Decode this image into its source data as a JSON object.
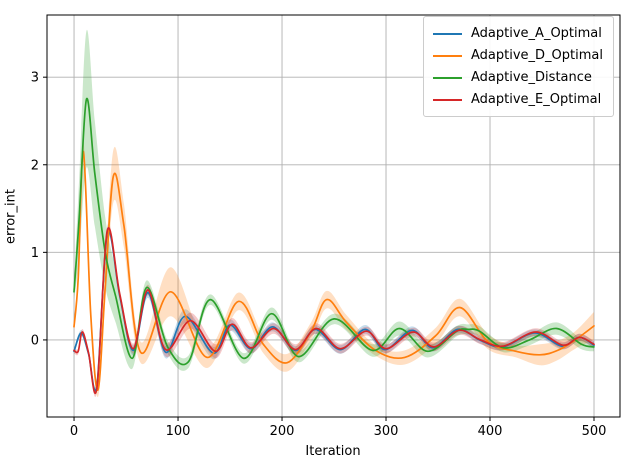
{
  "figure": {
    "background": "#ffffff"
  },
  "chart_data": {
    "type": "line",
    "title": "",
    "xlabel": "Iteration",
    "ylabel": "error_int",
    "xlim": [
      -26,
      525
    ],
    "ylim": [
      -0.88,
      3.71
    ],
    "xticks": [
      0,
      100,
      200,
      300,
      400,
      500
    ],
    "yticks": [
      0,
      1,
      2,
      3
    ],
    "grid": true,
    "grid_color": "#b0b0b0",
    "spine_color": "#000000",
    "legend_position": "upper right",
    "band_alpha": 0.25,
    "series": [
      {
        "name": "Adaptive_A_Optimal",
        "color": "#1f77b4",
        "points": [
          [
            0,
            -0.13
          ],
          [
            7,
            0.08
          ],
          [
            14,
            -0.16
          ],
          [
            22,
            -0.52
          ],
          [
            32,
            1.22
          ],
          [
            44,
            0.5
          ],
          [
            57,
            -0.12
          ],
          [
            71,
            0.54
          ],
          [
            88,
            -0.14
          ],
          [
            107,
            0.27
          ],
          [
            134,
            -0.15
          ],
          [
            150,
            0.17
          ],
          [
            170,
            -0.1
          ],
          [
            191,
            0.15
          ],
          [
            213,
            -0.12
          ],
          [
            232,
            0.12
          ],
          [
            256,
            -0.11
          ],
          [
            280,
            0.12
          ],
          [
            299,
            -0.11
          ],
          [
            325,
            0.11
          ],
          [
            345,
            -0.09
          ],
          [
            369,
            0.12
          ],
          [
            390,
            0.0
          ],
          [
            412,
            -0.08
          ],
          [
            443,
            0.08
          ],
          [
            469,
            -0.07
          ],
          [
            486,
            0.03
          ],
          [
            500,
            -0.06
          ]
        ],
        "band": [
          [
            0,
            0.03
          ],
          [
            32,
            0.05
          ],
          [
            71,
            0.06
          ],
          [
            88,
            0.07
          ],
          [
            107,
            0.08
          ],
          [
            134,
            0.07
          ],
          [
            191,
            0.05
          ],
          [
            280,
            0.05
          ],
          [
            369,
            0.04
          ],
          [
            500,
            0.04
          ]
        ]
      },
      {
        "name": "Adaptive_D_Optimal",
        "color": "#ff7f0e",
        "points": [
          [
            0,
            0.15
          ],
          [
            4,
            0.7
          ],
          [
            9,
            2.15
          ],
          [
            16,
            0.3
          ],
          [
            23,
            -0.57
          ],
          [
            30,
            0.6
          ],
          [
            38,
            1.88
          ],
          [
            48,
            1.3
          ],
          [
            64,
            -0.14
          ],
          [
            93,
            0.55
          ],
          [
            128,
            -0.2
          ],
          [
            158,
            0.44
          ],
          [
            182,
            -0.05
          ],
          [
            205,
            -0.26
          ],
          [
            228,
            0.1
          ],
          [
            243,
            0.46
          ],
          [
            262,
            0.2
          ],
          [
            290,
            -0.12
          ],
          [
            318,
            -0.2
          ],
          [
            348,
            0.05
          ],
          [
            371,
            0.37
          ],
          [
            398,
            -0.02
          ],
          [
            425,
            -0.13
          ],
          [
            448,
            -0.17
          ],
          [
            465,
            -0.12
          ],
          [
            482,
            0.0
          ],
          [
            500,
            0.16
          ]
        ],
        "band": [
          [
            0,
            0.05
          ],
          [
            9,
            0.12
          ],
          [
            23,
            0.08
          ],
          [
            38,
            0.3
          ],
          [
            48,
            0.25
          ],
          [
            64,
            0.12
          ],
          [
            80,
            0.22
          ],
          [
            93,
            0.28
          ],
          [
            105,
            0.25
          ],
          [
            128,
            0.12
          ],
          [
            158,
            0.1
          ],
          [
            205,
            0.1
          ],
          [
            243,
            0.1
          ],
          [
            290,
            0.06
          ],
          [
            318,
            0.08
          ],
          [
            371,
            0.1
          ],
          [
            425,
            0.07
          ],
          [
            448,
            0.12
          ],
          [
            482,
            0.1
          ],
          [
            500,
            0.16
          ]
        ]
      },
      {
        "name": "Adaptive_Distance",
        "color": "#2ca02c",
        "points": [
          [
            0,
            0.55
          ],
          [
            5,
            1.4
          ],
          [
            12,
            2.75
          ],
          [
            20,
            1.9
          ],
          [
            30,
            1.0
          ],
          [
            40,
            0.5
          ],
          [
            56,
            -0.21
          ],
          [
            70,
            0.6
          ],
          [
            90,
            -0.08
          ],
          [
            110,
            -0.25
          ],
          [
            131,
            0.46
          ],
          [
            163,
            -0.21
          ],
          [
            190,
            0.3
          ],
          [
            216,
            -0.19
          ],
          [
            250,
            0.24
          ],
          [
            287,
            -0.12
          ],
          [
            313,
            0.13
          ],
          [
            340,
            -0.13
          ],
          [
            368,
            0.1
          ],
          [
            379,
            0.12
          ],
          [
            390,
            0.1
          ],
          [
            413,
            -0.09
          ],
          [
            438,
            0.0
          ],
          [
            464,
            0.13
          ],
          [
            488,
            -0.05
          ],
          [
            500,
            -0.08
          ]
        ],
        "band": [
          [
            0,
            0.1
          ],
          [
            5,
            0.45
          ],
          [
            12,
            0.78
          ],
          [
            20,
            0.6
          ],
          [
            30,
            0.4
          ],
          [
            40,
            0.3
          ],
          [
            56,
            0.12
          ],
          [
            70,
            0.08
          ],
          [
            110,
            0.07
          ],
          [
            131,
            0.06
          ],
          [
            163,
            0.06
          ],
          [
            190,
            0.07
          ],
          [
            250,
            0.06
          ],
          [
            313,
            0.08
          ],
          [
            368,
            0.06
          ],
          [
            413,
            0.05
          ],
          [
            464,
            0.07
          ],
          [
            500,
            0.05
          ]
        ]
      },
      {
        "name": "Adaptive_E_Optimal",
        "color": "#d62728",
        "points": [
          [
            0,
            -0.12
          ],
          [
            4,
            -0.13
          ],
          [
            8,
            0.09
          ],
          [
            14,
            -0.15
          ],
          [
            22,
            -0.55
          ],
          [
            32,
            1.25
          ],
          [
            44,
            0.52
          ],
          [
            57,
            -0.1
          ],
          [
            71,
            0.57
          ],
          [
            88,
            -0.11
          ],
          [
            112,
            0.22
          ],
          [
            136,
            -0.13
          ],
          [
            152,
            0.18
          ],
          [
            170,
            -0.09
          ],
          [
            192,
            0.13
          ],
          [
            213,
            -0.11
          ],
          [
            233,
            0.13
          ],
          [
            256,
            -0.1
          ],
          [
            281,
            0.1
          ],
          [
            300,
            -0.1
          ],
          [
            326,
            0.09
          ],
          [
            346,
            -0.08
          ],
          [
            370,
            0.11
          ],
          [
            391,
            0.0
          ],
          [
            413,
            -0.07
          ],
          [
            444,
            0.09
          ],
          [
            470,
            -0.06
          ],
          [
            486,
            0.03
          ],
          [
            500,
            -0.05
          ]
        ],
        "band": [
          [
            0,
            0.03
          ],
          [
            32,
            0.05
          ],
          [
            71,
            0.06
          ],
          [
            88,
            0.08
          ],
          [
            112,
            0.09
          ],
          [
            136,
            0.08
          ],
          [
            152,
            0.07
          ],
          [
            192,
            0.06
          ],
          [
            233,
            0.06
          ],
          [
            281,
            0.05
          ],
          [
            370,
            0.05
          ],
          [
            500,
            0.04
          ]
        ]
      }
    ]
  }
}
